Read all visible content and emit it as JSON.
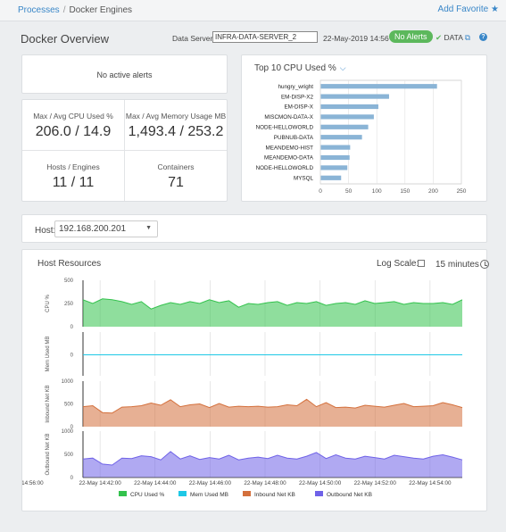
{
  "breadcrumb": {
    "parent": "Processes",
    "current": "Docker Engines"
  },
  "header": {
    "add_favorite": "Add Favorite",
    "star": "★"
  },
  "overview": {
    "title": "Docker Overview",
    "data_server_label": "Data Server:",
    "data_server_value": "INFRA-DATA-SERVER_2",
    "date": "22-May-2019 14:56",
    "alerts_badge": "No Alerts",
    "data_label": "DATA",
    "help_glyph": "?"
  },
  "alerts_panel": {
    "text": "No active alerts"
  },
  "kpis": {
    "cpu_label": "Max / Avg CPU Used %",
    "cpu_value": "206.0 / 14.9",
    "mem_label": "Max / Avg Memory Usage MB",
    "mem_value": "1,493.4 / 253.2",
    "hosts_label": "Hosts / Engines",
    "hosts_value": "11 / 11",
    "containers_label": "Containers",
    "containers_value": "71"
  },
  "host": {
    "label": "Host:",
    "selected": "192.168.200.201"
  },
  "host_resources": {
    "title": "Host Resources",
    "log_scale_label": "Log Scale:",
    "timespan": "15 minutes"
  },
  "colors": {
    "accent": "#3a87c8",
    "ok_green": "#5cb85c",
    "bar": "#8ab4d6",
    "cpu": "#33c24d",
    "mem": "#1ec8e6",
    "inbound": "#d4703c",
    "outbound": "#6f62e8"
  },
  "chart_data": [
    {
      "type": "bar",
      "orientation": "horizontal",
      "title": "Top 10 CPU Used %",
      "categories": [
        "hungry_wright",
        "EM-DISP-X2",
        "EM-DISP-X",
        "MISCMON-DATA-X",
        "NODE-HELLOWORLD",
        "PUBNUB-DATA",
        "MEANDEMO-HIST",
        "MEANDEMO-DATA",
        "NODE-HELLOWORLD",
        "MYSQL"
      ],
      "values": [
        206,
        121,
        102,
        94,
        84,
        73,
        52,
        51,
        47,
        36
      ],
      "xlim": [
        0,
        250
      ],
      "xticks": [
        "0",
        "50",
        "100",
        "150",
        "200",
        "250"
      ],
      "grid": true
    },
    {
      "type": "area",
      "shared_x": [
        "22-May 14:42:00",
        "22-May 14:44:00",
        "22-May 14:46:00",
        "22-May 14:48:00",
        "22-May 14:50:00",
        "22-May 14:52:00",
        "22-May 14:54:00",
        "22-May 14:56:00"
      ],
      "x_start": "14:41",
      "x_end": "14:56",
      "panels": [
        {
          "ylabel": "CPU %",
          "ylim": [
            0,
            500
          ],
          "yticks": [
            "500",
            "250",
            "0"
          ],
          "values": [
            290,
            250,
            300,
            290,
            270,
            240,
            270,
            190,
            230,
            260,
            240,
            270,
            250,
            290,
            260,
            280,
            210,
            250,
            240,
            260,
            270,
            230,
            260,
            250,
            270,
            230,
            250,
            260,
            240,
            280,
            250,
            260,
            270,
            240,
            260,
            250,
            250,
            260,
            240,
            290
          ]
        },
        {
          "ylabel": "Mem Used MB",
          "yticks": [
            "0"
          ],
          "values": [
            0,
            0,
            0,
            0,
            0,
            0,
            0,
            0,
            0,
            0,
            0,
            0,
            0,
            0,
            0,
            0,
            0,
            0,
            0,
            0,
            0,
            0,
            0,
            0,
            0,
            0,
            0,
            0,
            0,
            0,
            0,
            0,
            0,
            0,
            0,
            0,
            0,
            0,
            0,
            0
          ]
        },
        {
          "ylabel": "Inbound Net KB",
          "ylim": [
            0,
            1000
          ],
          "yticks": [
            "1000",
            "500",
            "0"
          ],
          "values": [
            440,
            460,
            310,
            300,
            430,
            440,
            460,
            520,
            470,
            590,
            440,
            480,
            500,
            420,
            510,
            430,
            450,
            440,
            450,
            430,
            440,
            480,
            460,
            600,
            440,
            530,
            420,
            430,
            410,
            470,
            450,
            430,
            470,
            510,
            440,
            450,
            460,
            530,
            480,
            420
          ]
        },
        {
          "ylabel": "Outbound Net KB",
          "ylim": [
            0,
            1000
          ],
          "yticks": [
            "1000",
            "500",
            "0"
          ],
          "values": [
            400,
            420,
            290,
            270,
            420,
            410,
            470,
            450,
            380,
            560,
            400,
            470,
            390,
            430,
            400,
            480,
            380,
            420,
            440,
            410,
            480,
            420,
            400,
            460,
            540,
            410,
            490,
            420,
            400,
            460,
            430,
            400,
            480,
            450,
            420,
            400,
            460,
            490,
            440,
            380
          ]
        }
      ],
      "legend": [
        "CPU Used %",
        "Mem Used MB",
        "Inbound Net KB",
        "Outbound Net KB"
      ],
      "legend_position": "bottom",
      "grid": true
    }
  ]
}
